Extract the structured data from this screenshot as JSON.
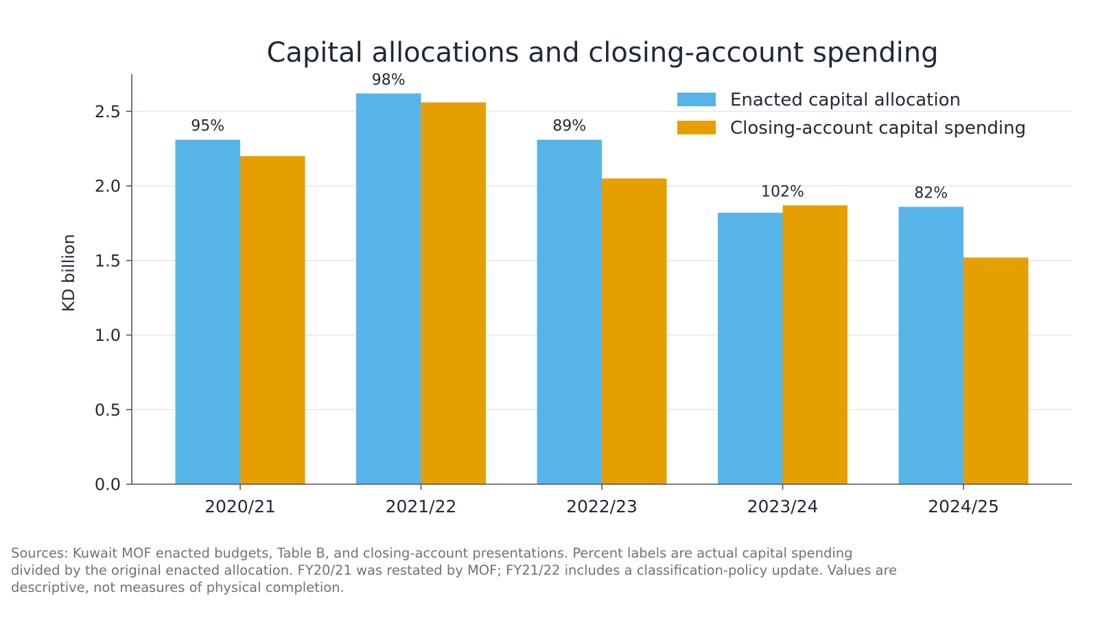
{
  "chart_data": {
    "type": "bar",
    "title": "Capital allocations and closing-account spending",
    "xlabel": "",
    "ylabel": "KD billion",
    "categories": [
      "2020/21",
      "2021/22",
      "2022/23",
      "2023/24",
      "2024/25"
    ],
    "series": [
      {
        "name": "Enacted capital allocation",
        "color": "#56b4e9",
        "values": [
          2.31,
          2.62,
          2.31,
          1.82,
          1.86
        ]
      },
      {
        "name": "Closing-account capital spending",
        "color": "#e69f00",
        "values": [
          2.2,
          2.56,
          2.05,
          1.87,
          1.52
        ]
      }
    ],
    "data_labels": [
      "95%",
      "98%",
      "89%",
      "102%",
      "82%"
    ],
    "ylim": [
      0,
      2.75
    ],
    "yticks": [
      "0.0",
      "0.5",
      "1.0",
      "1.5",
      "2.0",
      "2.5"
    ],
    "grid": "horizontal",
    "legend_position": "top-right"
  },
  "footnote": "Sources: Kuwait MOF enacted budgets, Table B, and closing-account presentations. Percent labels are actual capital spending divided by the original enacted allocation. FY20/21 was restated by MOF; FY21/22 includes a classification-policy update. Values are descriptive, not measures of physical completion."
}
